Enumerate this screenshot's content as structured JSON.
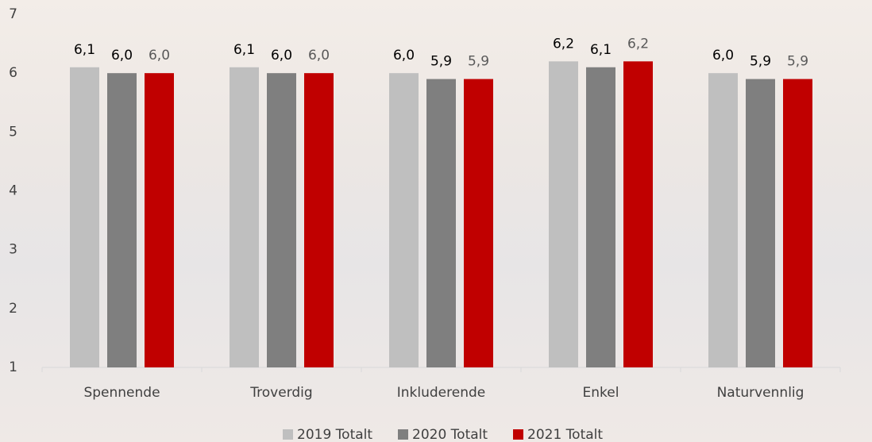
{
  "chart_data": {
    "type": "bar",
    "categories": [
      "Spennende",
      "Troverdig",
      "Inkluderende",
      "Enkel",
      "Naturvennlig"
    ],
    "series": [
      {
        "name": "2019 Totalt",
        "color": "#bfbfbf",
        "values": [
          6.1,
          6.1,
          6.0,
          6.2,
          6.0
        ],
        "value_labels": [
          "6,1",
          "6,1",
          "6,0",
          "6,2",
          "6,0"
        ]
      },
      {
        "name": "2020 Totalt",
        "color": "#7f7f7f",
        "values": [
          6.0,
          6.0,
          5.9,
          6.1,
          5.9
        ],
        "value_labels": [
          "6,0",
          "6,0",
          "5,9",
          "6,1",
          "5,9"
        ]
      },
      {
        "name": "2021 Totalt",
        "color": "#c00000",
        "values": [
          6.0,
          6.0,
          5.9,
          6.2,
          5.9
        ],
        "value_labels": [
          "6,0",
          "6,0",
          "5,9",
          "6,2",
          "5,9"
        ]
      }
    ],
    "ylim": [
      1,
      7
    ],
    "yticks": [
      1,
      2,
      3,
      4,
      5,
      6,
      7
    ],
    "grid": false,
    "legend": "bottom"
  }
}
